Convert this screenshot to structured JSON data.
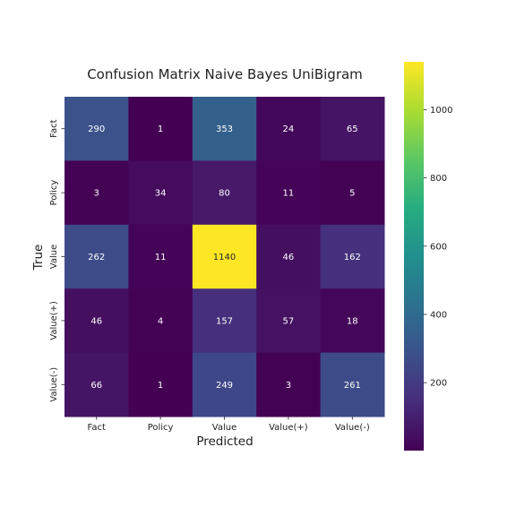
{
  "chart_data": {
    "type": "heatmap",
    "title": "Confusion Matrix Naive Bayes UniBigram",
    "xlabel": "Predicted",
    "ylabel": "True",
    "x_categories": [
      "Fact",
      "Policy",
      "Value",
      "Value(+)",
      "Value(-)"
    ],
    "y_categories": [
      "Fact",
      "Policy",
      "Value",
      "Value(+)",
      "Value(-)"
    ],
    "matrix": [
      [
        290,
        1,
        353,
        24,
        65
      ],
      [
        3,
        34,
        80,
        11,
        5
      ],
      [
        262,
        11,
        1140,
        46,
        162
      ],
      [
        46,
        4,
        157,
        57,
        18
      ],
      [
        66,
        1,
        249,
        3,
        261
      ]
    ],
    "colormap": "viridis",
    "value_range": [
      1,
      1140
    ],
    "colorbar_ticks": [
      200,
      400,
      600,
      800,
      1000
    ],
    "colorbar_tick_labels": [
      "200",
      "400",
      "600",
      "800",
      "1000"
    ]
  }
}
